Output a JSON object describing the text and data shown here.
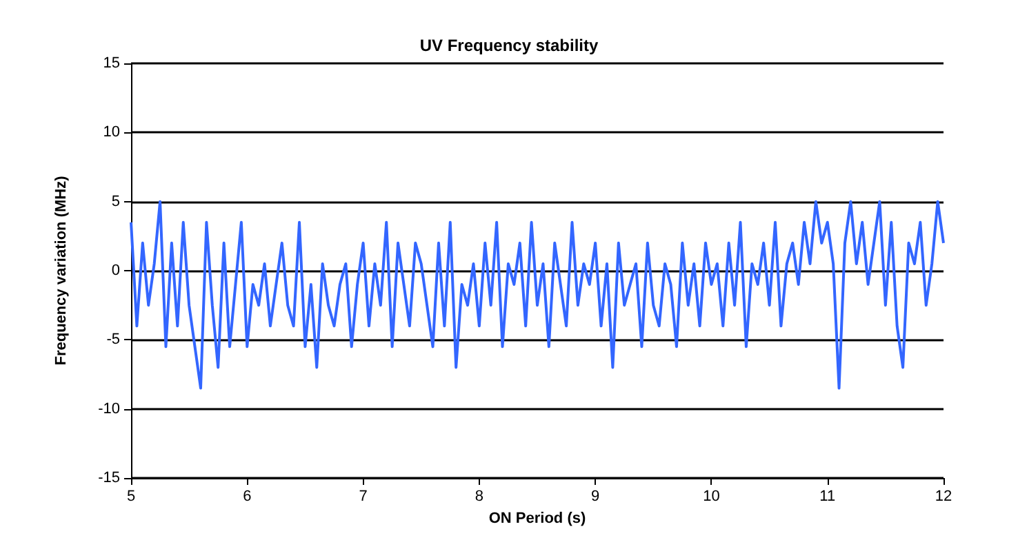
{
  "chart_data": {
    "type": "line",
    "title": "UV Frequency stability",
    "xlabel": "ON Period (s)",
    "ylabel": "Frequency variation (MHz)",
    "x": [
      5,
      5.05,
      5.1,
      5.15,
      5.2,
      5.25,
      5.3,
      5.35,
      5.4,
      5.45,
      5.5,
      5.55,
      5.6,
      5.65,
      5.7,
      5.75,
      5.8,
      5.85,
      5.9,
      5.95,
      6,
      6.05,
      6.1,
      6.15,
      6.2,
      6.25,
      6.3,
      6.35,
      6.4,
      6.45,
      6.5,
      6.55,
      6.6,
      6.65,
      6.7,
      6.75,
      6.8,
      6.85,
      6.9,
      6.95,
      7,
      7.05,
      7.1,
      7.15,
      7.2,
      7.25,
      7.3,
      7.35,
      7.4,
      7.45,
      7.5,
      7.55,
      7.6,
      7.65,
      7.7,
      7.75,
      7.8,
      7.85,
      7.9,
      7.95,
      8,
      8.05,
      8.1,
      8.15,
      8.2,
      8.25,
      8.3,
      8.35,
      8.4,
      8.45,
      8.5,
      8.55,
      8.6,
      8.65,
      8.7,
      8.75,
      8.8,
      8.85,
      8.9,
      8.95,
      9,
      9.05,
      9.1,
      9.15,
      9.2,
      9.25,
      9.3,
      9.35,
      9.4,
      9.45,
      9.5,
      9.55,
      9.6,
      9.65,
      9.7,
      9.75,
      9.8,
      9.85,
      9.9,
      9.95,
      10,
      10.05,
      10.1,
      10.15,
      10.2,
      10.25,
      10.3,
      10.35,
      10.4,
      10.45,
      10.5,
      10.55,
      10.6,
      10.65,
      10.7,
      10.75,
      10.8,
      10.85,
      10.9,
      10.95,
      11,
      11.05,
      11.1,
      11.15,
      11.2,
      11.25,
      11.3,
      11.35,
      11.4,
      11.45,
      11.5,
      11.55,
      11.6,
      11.65,
      11.7,
      11.75,
      11.8,
      11.85,
      11.9,
      11.95,
      12
    ],
    "series": [
      {
        "color": "#3366ff",
        "values": [
          3.5,
          -4,
          2,
          -2.5,
          0.5,
          5,
          -5.5,
          2,
          -4,
          3.5,
          -2.5,
          -5.5,
          -8.5,
          3.5,
          -2.5,
          -7,
          2,
          -5.5,
          -1,
          3.5,
          -5.5,
          -1,
          -2.5,
          0.5,
          -4,
          -1,
          2,
          -2.5,
          -4,
          3.5,
          -5.5,
          -1,
          -7,
          0.5,
          -2.5,
          -4,
          -1,
          0.5,
          -5.5,
          -1,
          2,
          -4,
          0.5,
          -2.5,
          3.5,
          -5.5,
          2,
          -1,
          -4,
          2,
          0.5,
          -2.5,
          -5.5,
          2,
          -4,
          3.5,
          -7,
          -1,
          -2.5,
          0.5,
          -4,
          2,
          -2.5,
          3.5,
          -5.5,
          0.5,
          -1,
          2,
          -4,
          3.5,
          -2.5,
          0.5,
          -5.5,
          2,
          -1,
          -4,
          3.5,
          -2.5,
          0.5,
          -1,
          2,
          -4,
          0.5,
          -7,
          2,
          -2.5,
          -1,
          0.5,
          -5.5,
          2,
          -2.5,
          -4,
          0.5,
          -1,
          -5.5,
          2,
          -2.5,
          0.5,
          -4,
          2,
          -1,
          0.5,
          -4,
          2,
          -2.5,
          3.5,
          -5.5,
          0.5,
          -1,
          2,
          -2.5,
          3.5,
          -4,
          0.5,
          2,
          -1,
          3.5,
          0.5,
          5,
          2,
          3.5,
          0.5,
          -8.5,
          2,
          5,
          0.5,
          3.5,
          -1,
          2,
          5,
          -2.5,
          3.5,
          -4,
          -7,
          2,
          0.5,
          3.5,
          -2.5,
          0.5,
          5,
          2
        ]
      }
    ],
    "xlim": [
      5,
      12
    ],
    "xticks": [
      5,
      6,
      7,
      8,
      9,
      10,
      11,
      12
    ],
    "ylim": [
      -15,
      15
    ],
    "yticks": [
      -15,
      -10,
      -5,
      0,
      5,
      10,
      15
    ],
    "grid": "y",
    "marker": "none",
    "line_style": "solid"
  }
}
